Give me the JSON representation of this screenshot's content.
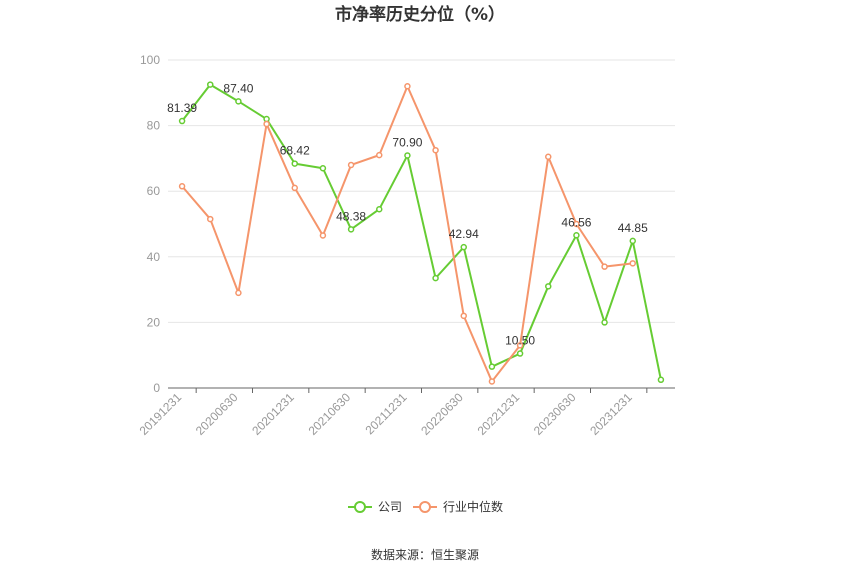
{
  "chart_data": {
    "type": "line",
    "title": "市净率历史分位（%）",
    "categories": [
      "20191231",
      "",
      "20200630",
      "",
      "20201231",
      "",
      "20210630",
      "",
      "20211231",
      "",
      "20220630",
      "",
      "20221231",
      "",
      "20230630",
      "",
      "20231231",
      ""
    ],
    "x_tick_labels": [
      "20191231",
      "20200630",
      "20201231",
      "20210630",
      "20211231",
      "20220630",
      "20221231",
      "20230630",
      "20231231"
    ],
    "ylim": [
      0,
      100
    ],
    "yticks": [
      0,
      20,
      40,
      60,
      80,
      100
    ],
    "grid": true,
    "legend_position": "bottom",
    "series": [
      {
        "name": "公司",
        "color": "#66cc33",
        "values": [
          81.39,
          92.5,
          87.4,
          82.0,
          68.42,
          67.0,
          48.38,
          54.5,
          70.9,
          33.5,
          42.94,
          6.5,
          10.5,
          31.0,
          46.56,
          20.0,
          44.85,
          2.5
        ],
        "labels": {
          "0": "81.39",
          "2": "87.40",
          "4": "68.42",
          "6": "48.38",
          "8": "70.90",
          "10": "42.94",
          "12": "10.50",
          "14": "46.56",
          "16": "44.85"
        }
      },
      {
        "name": "行业中位数",
        "color": "#f5956b",
        "values": [
          61.5,
          51.5,
          29.0,
          80.5,
          61.0,
          46.5,
          68.0,
          71.0,
          92.0,
          72.5,
          22.0,
          2.0,
          13.0,
          70.5,
          50.0,
          37.0,
          38.0,
          null
        ]
      }
    ]
  },
  "source_text": "数据来源：恒生聚源"
}
